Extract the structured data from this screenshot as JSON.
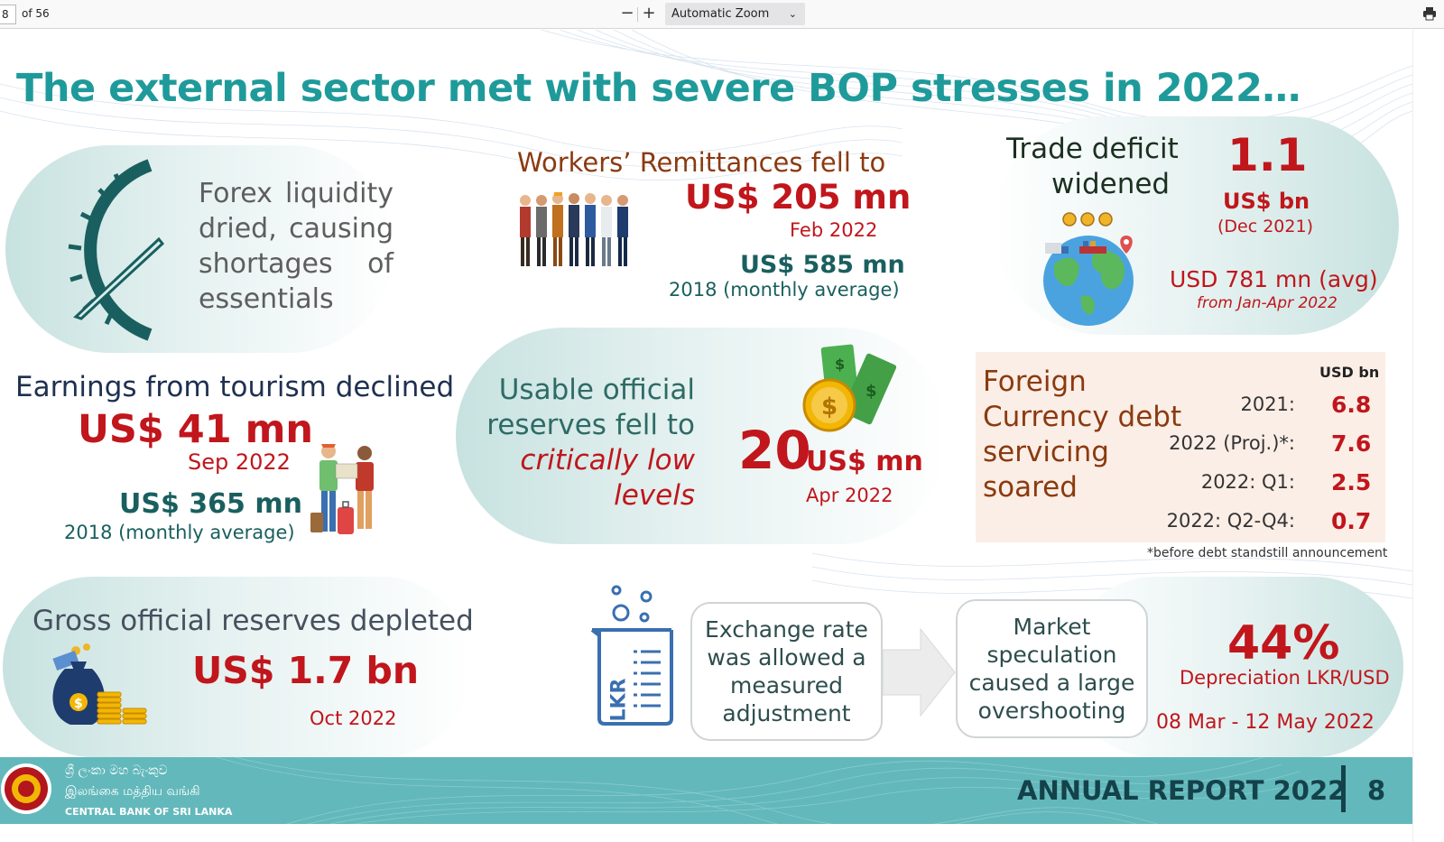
{
  "viewer": {
    "page_number": "8",
    "page_count": "of 56",
    "zoom_out": "−",
    "zoom_in": "+",
    "zoom_level": "Automatic Zoom"
  },
  "slide": {
    "title": "The external sector met with severe BOP stresses in 2022…",
    "forex": [
      "Forex liquidity",
      "dried, causing",
      "shortages of",
      "essentials"
    ],
    "remittances": {
      "heading": "Workers’ Remittances fell to",
      "value": "US$ 205 mn",
      "period": "Feb 2022",
      "compare_value": "US$ 585 mn",
      "compare_period": "2018 (monthly average)"
    },
    "trade": {
      "heading_line1": "Trade deficit",
      "heading_line2": "widened",
      "value": "1.1",
      "unit": "US$ bn",
      "period": "(Dec 2021)",
      "avg_value": "USD 781 mn (avg)",
      "avg_period": "from Jan-Apr 2022"
    },
    "tourism": {
      "heading": "Earnings from tourism declined",
      "value": "US$ 41 mn",
      "period": "Sep 2022",
      "compare_value": "US$ 365 mn",
      "compare_period": "2018 (monthly average)"
    },
    "usable_reserves": {
      "line1": "Usable official",
      "line2": "reserves fell to",
      "line3": "critically low",
      "line4": "levels",
      "value": "20",
      "unit": "US$ mn",
      "period": "Apr 2022"
    },
    "fc_debt": {
      "heading": [
        "Foreign",
        "Currency debt",
        "servicing",
        "soared"
      ],
      "unit": "USD bn",
      "rows": [
        {
          "label": "2021:",
          "value": "6.8"
        },
        {
          "label": "2022 (Proj.)*:",
          "value": "7.6"
        },
        {
          "label": "2022: Q1:",
          "value": "2.5"
        },
        {
          "label": "2022: Q2-Q4:",
          "value": "0.7"
        }
      ],
      "footnote": "*before debt standstill announcement"
    },
    "gross_reserves": {
      "heading": "Gross official reserves depleted",
      "value": "US$ 1.7 bn",
      "period": "Oct 2022"
    },
    "exchange": {
      "beaker_label": "LKR",
      "box1": [
        "Exchange rate",
        "was allowed a",
        "measured",
        "adjustment"
      ],
      "box2": [
        "Market",
        "speculation",
        "caused a large",
        "overshooting"
      ],
      "value": "44%",
      "label": "Depreciation LKR/USD",
      "period": "08 Mar - 12 May 2022"
    },
    "footer": {
      "bank_sinhala": "ශ්‍රී ලංකා මහ බැංකුව",
      "bank_tamil": "இலங்கை மத்திய வங்கி",
      "bank_english": "CENTRAL BANK OF SRI LANKA",
      "report": "ANNUAL REPORT 2022",
      "page": "8"
    },
    "colors": {
      "title": "#1f9a9a",
      "accent_red": "#c0161c",
      "teal_dark": "#1a5f5f",
      "footer_bg": "#63b8bb"
    }
  }
}
